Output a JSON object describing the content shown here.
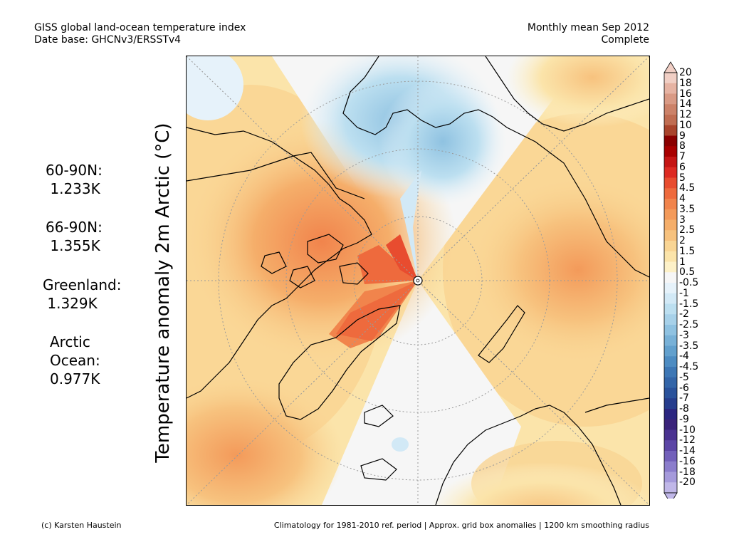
{
  "header": {
    "title_line1": "GISS global land-ocean temperature index",
    "title_line2": "Date base: GHCNv3/ERSSTv4",
    "period_line1": "Monthly mean Sep 2012",
    "period_line2": "Complete"
  },
  "axis_label": "Temperature anomaly 2m Arctic (°C)",
  "stats": [
    {
      "lines": [
        "60-90N:",
        " 1.233K"
      ]
    },
    {
      "lines": [
        "66-90N:",
        " 1.355K"
      ]
    },
    {
      "lines": [
        "Greenland:",
        " 1.329K"
      ]
    },
    {
      "lines": [
        "Arctic",
        "Ocean:",
        "0.977K"
      ]
    }
  ],
  "colorbar": {
    "labels": [
      "20",
      "18",
      "16",
      "14",
      "12",
      "10",
      "9",
      "8",
      "7",
      "6",
      "5",
      "4.5",
      "4",
      "3.5",
      "3",
      "2.5",
      "2",
      "1.5",
      "1",
      "0.5",
      "-0.5",
      "-1",
      "-1.5",
      "-2",
      "-2.5",
      "-3",
      "-3.5",
      "-4",
      "-4.5",
      "-5",
      "-6",
      "-7",
      "-8",
      "-9",
      "-10",
      "-12",
      "-14",
      "-16",
      "-18",
      "-20"
    ],
    "colors": [
      "#f1cfc5",
      "#e6b3a3",
      "#d99a85",
      "#cc8269",
      "#c06d52",
      "#a9442c",
      "#8a0000",
      "#a80000",
      "#c51514",
      "#dd2a22",
      "#e84c2f",
      "#ee6a3d",
      "#f1844c",
      "#f39a5a",
      "#f5ae6a",
      "#f7c27e",
      "#f9d594",
      "#fbe4aa",
      "#fdf1c8",
      "#f6f6f6",
      "#e6f2fa",
      "#d2e9f6",
      "#bcdff0",
      "#a7d1e9",
      "#8fc2e1",
      "#78b1d7",
      "#62a0cd",
      "#4d8cc2",
      "#3d77b5",
      "#3365a8",
      "#2a529b",
      "#263d8d",
      "#2b2680",
      "#3a237a",
      "#4a3290",
      "#5c46a6",
      "#7260ba",
      "#8b7dcc",
      "#a59adb",
      "#c0b7e8"
    ],
    "top_arrow_color": "#f1cfc5",
    "bottom_arrow_color": "#c0b7e8"
  },
  "footer": {
    "left": "(c) Karsten Haustein",
    "right": "Climatology for 1981-2010 ref. period | Approx. grid box anomalies | 1200 km smoothing radius"
  }
}
